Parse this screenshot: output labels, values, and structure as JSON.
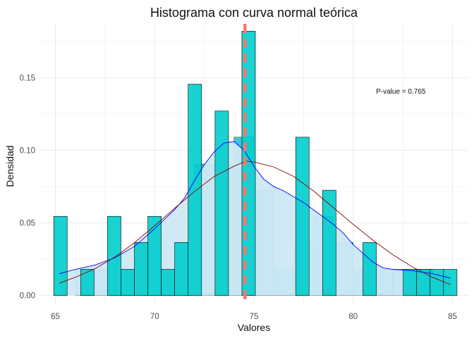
{
  "chart_data": {
    "type": "bar",
    "title": "Histograma con curva normal teórica",
    "xlabel": "Valores",
    "ylabel": "Densidad",
    "xlim": [
      64.2,
      85.8
    ],
    "ylim": [
      -0.006,
      0.187
    ],
    "x_ticks": [
      65,
      70,
      75,
      80,
      85
    ],
    "y_ticks": [
      0.0,
      0.05,
      0.1,
      0.15
    ],
    "y_tick_labels": [
      "0.00",
      "0.05",
      "0.10",
      "0.15"
    ],
    "grid": true,
    "legend": "none",
    "annotation": {
      "text": "P-value = 0.765",
      "x": 82.4,
      "y": 0.139
    },
    "histogram": {
      "bin_width": 0.677,
      "bin_starts": [
        64.917,
        65.594,
        66.271,
        66.948,
        67.625,
        68.302,
        68.979,
        69.656,
        70.333,
        71.01,
        71.687,
        72.364,
        73.041,
        73.718,
        74.395,
        75.072,
        75.749,
        76.426,
        77.103,
        77.78,
        78.457,
        79.134,
        79.811,
        80.488,
        81.165,
        81.842,
        82.519,
        83.196,
        83.873,
        84.55
      ],
      "density": [
        0.0545,
        0.0,
        0.018,
        0.0,
        0.0545,
        0.018,
        0.0365,
        0.0545,
        0.018,
        0.0365,
        0.1455,
        0.0,
        0.127,
        0.0,
        0.182,
        0.0,
        0.0,
        0.0,
        0.109,
        0.0,
        0.0725,
        0.0,
        0.0,
        0.0365,
        0.0,
        0.0,
        0.018,
        0.018,
        0.018,
        0.018
      ],
      "fill": "#00cdcd"
    },
    "histogram_overlay": {
      "bin_width": 1.0,
      "bin_starts": [
        65,
        66,
        67,
        68,
        69,
        70,
        71,
        72,
        73,
        74,
        75,
        76,
        77,
        78,
        79,
        80,
        81,
        82,
        83,
        84
      ],
      "density": [
        0.0,
        0.018,
        0.018,
        0.018,
        0.0365,
        0.018,
        0.0365,
        0.0905,
        0.0905,
        0.109,
        0.0725,
        0.018,
        0.0365,
        0.0545,
        0.0365,
        0.018,
        0.018,
        0.018,
        0.018,
        0.0
      ],
      "fill": "#3ec8d4"
    },
    "density_area": {
      "x": [
        65.2,
        66,
        67,
        68,
        69,
        70,
        71,
        71.5,
        72,
        72.5,
        73,
        73.5,
        74,
        74.5,
        75,
        75.5,
        76,
        76.5,
        77,
        77.5,
        78,
        78.5,
        79,
        79.5,
        80,
        80.5,
        81,
        81.5,
        82,
        83,
        84,
        84.9
      ],
      "y": [
        0.015,
        0.018,
        0.021,
        0.026,
        0.034,
        0.046,
        0.059,
        0.067,
        0.079,
        0.09,
        0.099,
        0.105,
        0.106,
        0.1,
        0.089,
        0.08,
        0.075,
        0.072,
        0.068,
        0.064,
        0.059,
        0.054,
        0.049,
        0.043,
        0.035,
        0.029,
        0.023,
        0.019,
        0.018,
        0.017,
        0.015,
        0.012
      ],
      "fill": "#cde9f4",
      "line": "#0000ff"
    },
    "normal_curve": {
      "x": [
        65.2,
        66,
        67,
        68,
        69,
        70,
        71,
        72,
        73,
        74,
        74.6,
        75,
        76,
        77,
        78,
        79,
        80,
        81,
        82,
        83,
        84,
        84.9
      ],
      "y": [
        0.0085,
        0.0125,
        0.0185,
        0.0265,
        0.0365,
        0.048,
        0.06,
        0.0715,
        0.082,
        0.089,
        0.0925,
        0.092,
        0.0885,
        0.082,
        0.072,
        0.0605,
        0.049,
        0.038,
        0.028,
        0.0195,
        0.0125,
        0.0075
      ],
      "color": "#8b0000"
    },
    "mean_line": {
      "x": 74.55,
      "color": "#f8766d"
    },
    "colors": {
      "panel_grid": "#ebebeb",
      "bar_outline": "#000000"
    }
  }
}
